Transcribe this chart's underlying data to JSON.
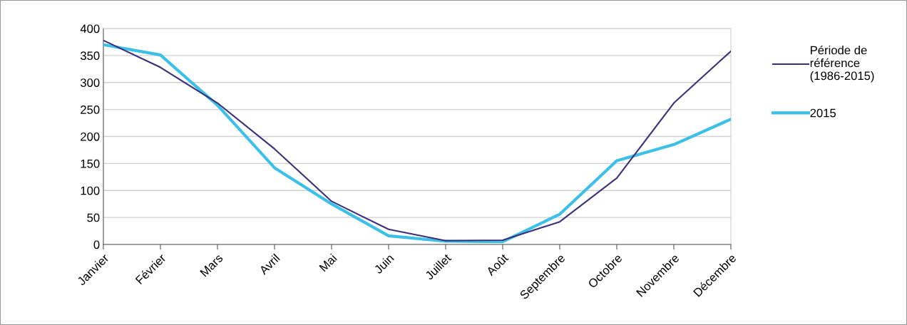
{
  "chart_data": {
    "type": "line",
    "categories": [
      "Janvier",
      "Février",
      "Mars",
      "Avril",
      "Mai",
      "Juin",
      "Juillet",
      "Août",
      "Septembre",
      "Octobre",
      "Novembre",
      "Décembre"
    ],
    "series": [
      {
        "name": "Période de\nréférence\n(1986-2015)",
        "color": "#3b2f7a",
        "values": [
          378,
          328,
          262,
          177,
          80,
          28,
          7,
          8,
          42,
          123,
          262,
          358
        ]
      },
      {
        "name": "2015",
        "color": "#3cc0e8",
        "values": [
          370,
          351,
          258,
          142,
          75,
          16,
          6,
          5,
          56,
          155,
          185,
          232
        ]
      }
    ],
    "ylim": [
      0,
      400
    ],
    "yticks": [
      0,
      50,
      100,
      150,
      200,
      250,
      300,
      350,
      400
    ],
    "grid": "y",
    "legend": "right",
    "marker": "none",
    "line_style": "solid"
  }
}
